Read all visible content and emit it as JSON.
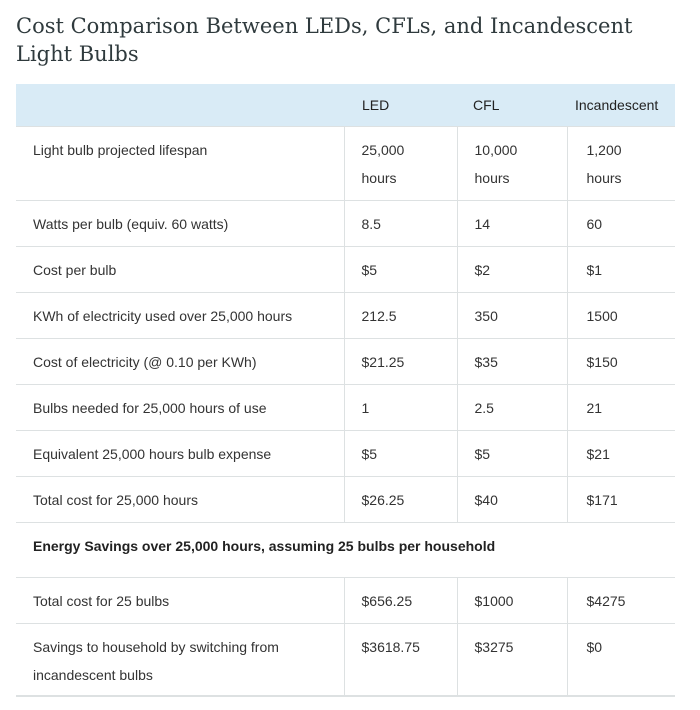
{
  "title": "Cost Comparison Between LEDs, CFLs, and Incandescent Light Bulbs",
  "columns": [
    "",
    "LED",
    "CFL",
    "Incandescent"
  ],
  "rows": [
    {
      "label": "Light bulb projected lifespan",
      "led": "25,000 hours",
      "cfl": "10,000 hours",
      "inc": "1,200 hours"
    },
    {
      "label": "Watts per bulb (equiv. 60 watts)",
      "led": "8.5",
      "cfl": "14",
      "inc": "60"
    },
    {
      "label": "Cost per bulb",
      "led": "$5",
      "cfl": "$2",
      "inc": "$1"
    },
    {
      "label": "KWh of electricity used over 25,000 hours",
      "led": "212.5",
      "cfl": "350",
      "inc": "1500"
    },
    {
      "label": "Cost of electricity (@ 0.10 per KWh)",
      "led": "$21.25",
      "cfl": "$35",
      "inc": "$150"
    },
    {
      "label": "Bulbs needed for 25,000 hours of use",
      "led": "1",
      "cfl": "2.5",
      "inc": "21"
    },
    {
      "label": "Equivalent 25,000 hours bulb expense",
      "led": "$5",
      "cfl": "$5",
      "inc": "$21"
    },
    {
      "label": "Total cost for 25,000 hours",
      "led": "$26.25",
      "cfl": "$40",
      "inc": "$171"
    }
  ],
  "section_heading": "Energy Savings over 25,000 hours, assuming 25 bulbs per household",
  "section_rows": [
    {
      "label": "Total cost for 25 bulbs",
      "led": "$656.25",
      "cfl": "$1000",
      "inc": "$4275"
    },
    {
      "label": "Savings to household by switching from incandescent bulbs",
      "led": "$3618.75",
      "cfl": "$3275",
      "inc": "$0"
    }
  ]
}
